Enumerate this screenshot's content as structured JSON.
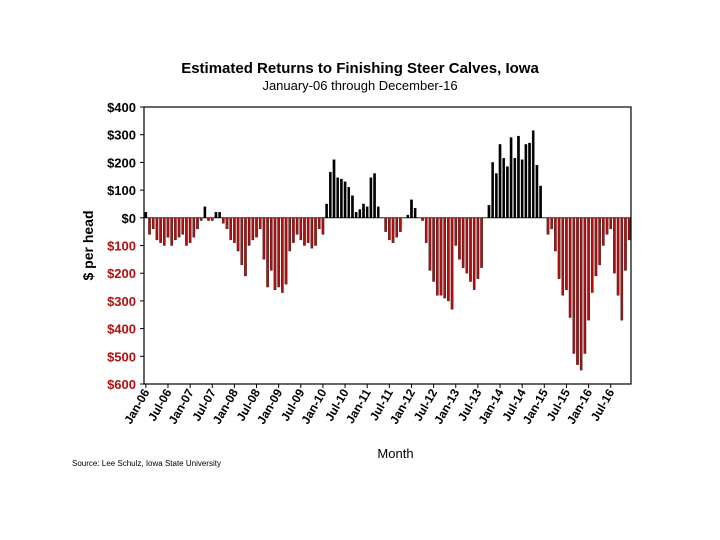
{
  "chart_data": {
    "type": "bar",
    "title": "Estimated Returns to Finishing Steer Calves, Iowa",
    "subtitle": "January-06 through December-16",
    "xlabel": "Month",
    "ylabel": "$ per head",
    "ylim": [
      -600,
      400
    ],
    "yticks": [
      400,
      300,
      200,
      100,
      0,
      -100,
      -200,
      -300,
      -400,
      -500,
      -600
    ],
    "ytick_labels": [
      "$400",
      "$300",
      "$200",
      "$100",
      "$0",
      "$100",
      "$200",
      "$300",
      "$400",
      "$500",
      "$600"
    ],
    "x_tick_labels": [
      "Jan-06",
      "Jul-06",
      "Jan-07",
      "Jul-07",
      "Jan-08",
      "Jul-08",
      "Jan-09",
      "Jul-09",
      "Jan-10",
      "Jul-10",
      "Jan-11",
      "Jul-11",
      "Jan-12",
      "Jul-12",
      "Jan-13",
      "Jul-13",
      "Jan-14",
      "Jul-14",
      "Jan-15",
      "Jul-15",
      "Jan-16",
      "Jul-16"
    ],
    "start_month": "Jan-06",
    "positive_color": "#000000",
    "negative_color": "#b01010",
    "values": [
      20,
      -60,
      -40,
      -80,
      -90,
      -100,
      -70,
      -100,
      -80,
      -70,
      -60,
      -100,
      -90,
      -70,
      -40,
      -10,
      40,
      -10,
      -10,
      20,
      20,
      -20,
      -40,
      -80,
      -90,
      -120,
      -170,
      -210,
      -100,
      -80,
      -70,
      -40,
      -150,
      -250,
      -190,
      -260,
      -250,
      -270,
      -240,
      -120,
      -90,
      -60,
      -80,
      -100,
      -90,
      -110,
      -100,
      -40,
      -60,
      50,
      165,
      210,
      145,
      140,
      130,
      110,
      80,
      20,
      30,
      50,
      40,
      145,
      160,
      40,
      0,
      -50,
      -80,
      -90,
      -70,
      -50,
      0,
      10,
      65,
      35,
      0,
      -10,
      -90,
      -190,
      -230,
      -280,
      -280,
      -290,
      -300,
      -330,
      -100,
      -150,
      -180,
      -200,
      -230,
      -260,
      -220,
      -180,
      0,
      45,
      200,
      160,
      265,
      215,
      185,
      290,
      215,
      295,
      210,
      265,
      270,
      315,
      190,
      115,
      0,
      -60,
      -40,
      -120,
      -220,
      -280,
      -260,
      -360,
      -490,
      -530,
      -550,
      -490,
      -370,
      -270,
      -210,
      -170,
      -100,
      -60,
      -40,
      -200,
      -280,
      -370,
      -190,
      -80
    ]
  },
  "source": "Source: Lee Schulz, Iowa State University"
}
